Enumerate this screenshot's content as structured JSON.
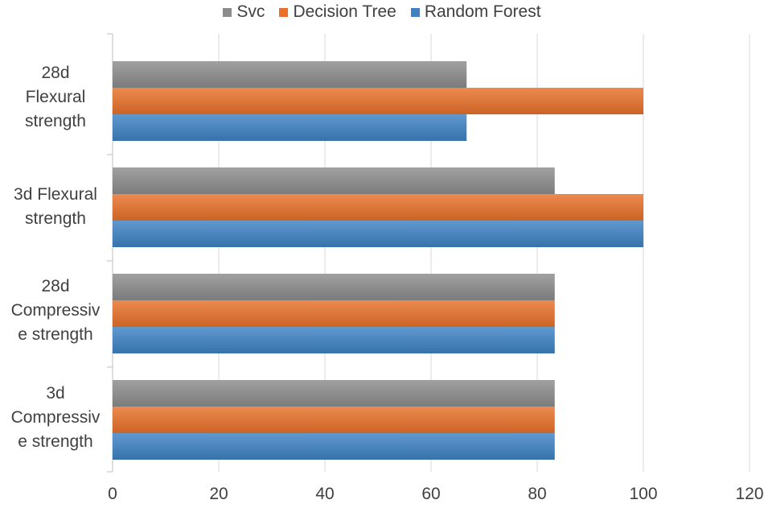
{
  "chart_data": {
    "type": "bar",
    "orientation": "horizontal",
    "categories": [
      "28d\nFlexural\nstrength",
      "3d Flexural\nstrength",
      "28d\nCompressiv\ne strength",
      "3d\nCompressiv\ne strength"
    ],
    "series": [
      {
        "name": "Svc",
        "color": "#8c8c8c",
        "values": [
          66.7,
          83.3,
          83.3,
          83.3
        ]
      },
      {
        "name": "Decision Tree",
        "color": "#e8702a",
        "values": [
          100,
          100,
          83.3,
          83.3
        ]
      },
      {
        "name": "Random Forest",
        "color": "#3e82c4",
        "values": [
          66.7,
          100,
          83.3,
          83.3
        ]
      }
    ],
    "xlim": [
      0,
      120
    ],
    "xticks": [
      "0",
      "20",
      "40",
      "60",
      "80",
      "100",
      "120"
    ],
    "title": "",
    "xlabel": "",
    "ylabel": "",
    "legend_position": "top",
    "grid": "vertical"
  }
}
